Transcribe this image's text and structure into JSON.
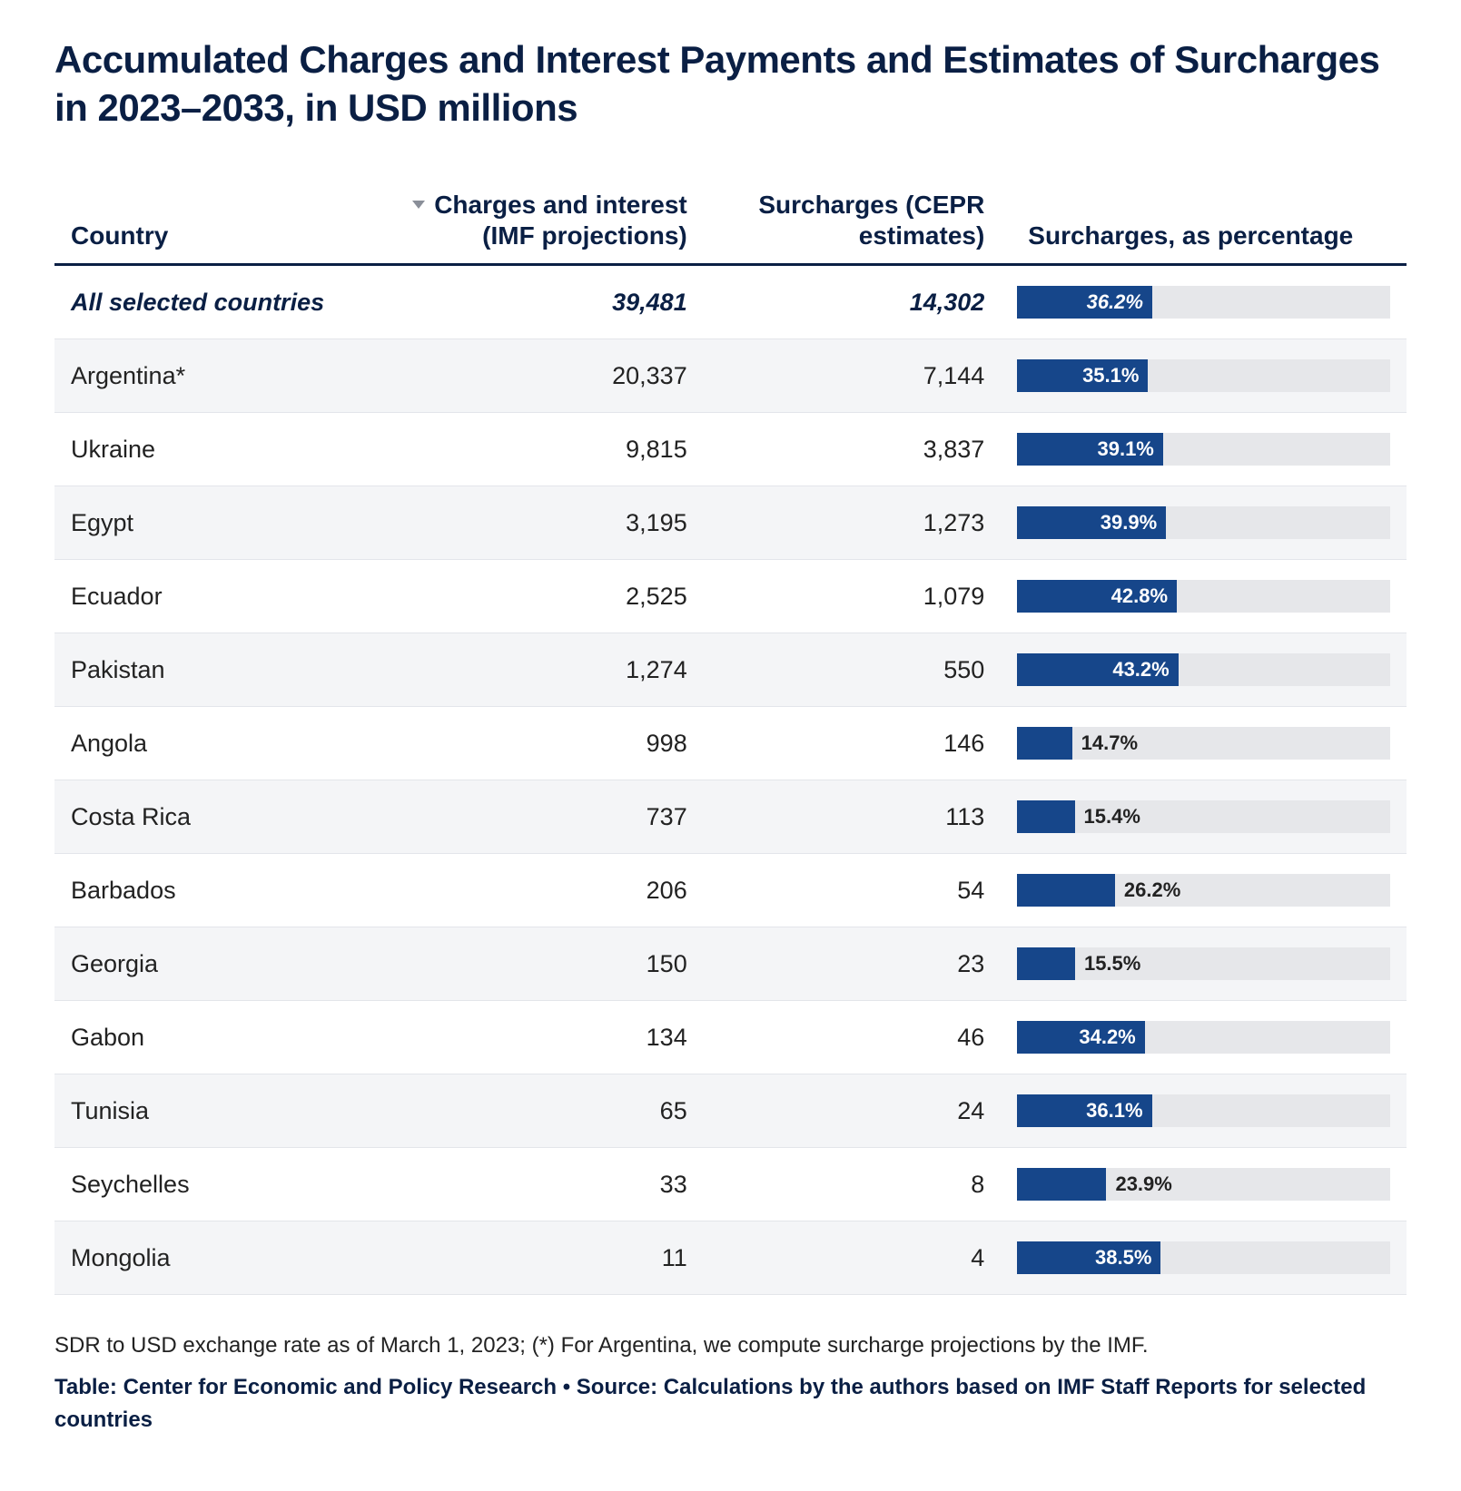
{
  "title": "Accumulated Charges and Interest Payments and Estimates of Surcharges in 2023–2033, in USD millions",
  "columns": {
    "country": "Country",
    "charges": "Charges and interest (IMF projections)",
    "surcharges": "Surcharges (CEPR estimates)",
    "pct": "Surcharges, as percentage"
  },
  "sort_indicator_on": "charges",
  "summary_row": {
    "country": "All selected countries",
    "charges": "39,481",
    "surcharges": "14,302",
    "pct_value": 36.2,
    "pct_label": "36.2%"
  },
  "rows": [
    {
      "country": "Argentina*",
      "charges": "20,337",
      "surcharges": "7,144",
      "pct_value": 35.1,
      "pct_label": "35.1%"
    },
    {
      "country": "Ukraine",
      "charges": "9,815",
      "surcharges": "3,837",
      "pct_value": 39.1,
      "pct_label": "39.1%"
    },
    {
      "country": "Egypt",
      "charges": "3,195",
      "surcharges": "1,273",
      "pct_value": 39.9,
      "pct_label": "39.9%"
    },
    {
      "country": "Ecuador",
      "charges": "2,525",
      "surcharges": "1,079",
      "pct_value": 42.8,
      "pct_label": "42.8%"
    },
    {
      "country": "Pakistan",
      "charges": "1,274",
      "surcharges": "550",
      "pct_value": 43.2,
      "pct_label": "43.2%"
    },
    {
      "country": "Angola",
      "charges": "998",
      "surcharges": "146",
      "pct_value": 14.7,
      "pct_label": "14.7%"
    },
    {
      "country": "Costa Rica",
      "charges": "737",
      "surcharges": "113",
      "pct_value": 15.4,
      "pct_label": "15.4%"
    },
    {
      "country": "Barbados",
      "charges": "206",
      "surcharges": "54",
      "pct_value": 26.2,
      "pct_label": "26.2%"
    },
    {
      "country": "Georgia",
      "charges": "150",
      "surcharges": "23",
      "pct_value": 15.5,
      "pct_label": "15.5%"
    },
    {
      "country": "Gabon",
      "charges": "134",
      "surcharges": "46",
      "pct_value": 34.2,
      "pct_label": "34.2%"
    },
    {
      "country": "Tunisia",
      "charges": "65",
      "surcharges": "24",
      "pct_value": 36.1,
      "pct_label": "36.1%"
    },
    {
      "country": "Seychelles",
      "charges": "33",
      "surcharges": "8",
      "pct_value": 23.9,
      "pct_label": "23.9%"
    },
    {
      "country": "Mongolia",
      "charges": "11",
      "surcharges": "4",
      "pct_value": 38.5,
      "pct_label": "38.5%"
    }
  ],
  "bar_style": {
    "fill_color": "#16468a",
    "track_color": "#e6e7ea",
    "max_scale": 100,
    "label_inside_threshold": 28
  },
  "table_style": {
    "header_border_color": "#0a1f44",
    "row_border_color": "#e3e5ea",
    "zebra_color": "#f4f5f7",
    "text_color": "#222",
    "accent_color": "#0a1f44",
    "header_fontsize_pt": 21,
    "body_fontsize_pt": 20
  },
  "footnote": "SDR to USD exchange rate as of March 1, 2023; (*) For Argentina, we compute surcharge projections by the IMF.",
  "credit": "Table: Center for Economic and Policy Research • Source: Calculations by the authors based on IMF Staff Reports for selected countries"
}
